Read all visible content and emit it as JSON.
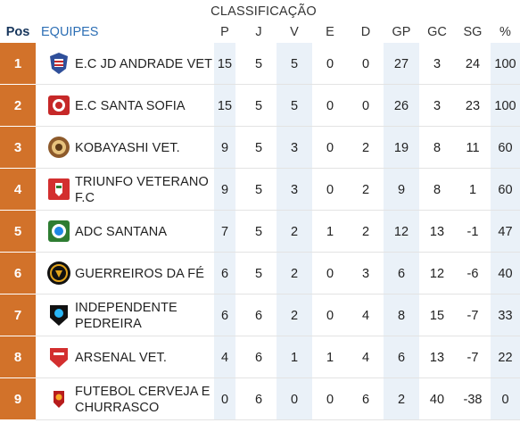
{
  "title": "CLASSIFICAÇÃO",
  "headers": {
    "pos": "Pos",
    "team": "EQUIPES",
    "p": "P",
    "j": "J",
    "v": "V",
    "e": "E",
    "d": "D",
    "gp": "GP",
    "gc": "GC",
    "sg": "SG",
    "pct": "%"
  },
  "colors": {
    "position_badge": "#d2722a",
    "header_team": "#2d6fb5",
    "header_pos": "#17365c",
    "shaded_column": "#eaf1f8"
  },
  "rows": [
    {
      "pos": "1",
      "team": "E.C JD ANDRADE VET",
      "logo": "shield-blue-red-crest",
      "p": "15",
      "j": "5",
      "v": "5",
      "e": "0",
      "d": "0",
      "gp": "27",
      "gc": "3",
      "sg": "24",
      "pct": "100"
    },
    {
      "pos": "2",
      "team": "E.C SANTA SOFIA",
      "logo": "red-white-crest",
      "p": "15",
      "j": "5",
      "v": "5",
      "e": "0",
      "d": "0",
      "gp": "26",
      "gc": "3",
      "sg": "23",
      "pct": "100"
    },
    {
      "pos": "3",
      "team": "KOBAYASHI VET.",
      "logo": "round-brown-crest",
      "p": "9",
      "j": "5",
      "v": "3",
      "e": "0",
      "d": "2",
      "gp": "19",
      "gc": "8",
      "sg": "11",
      "pct": "60"
    },
    {
      "pos": "4",
      "team": "TRIUNFO VETERANO F.C",
      "logo": "red-green-shield",
      "p": "9",
      "j": "5",
      "v": "3",
      "e": "0",
      "d": "2",
      "gp": "9",
      "gc": "8",
      "sg": "1",
      "pct": "60"
    },
    {
      "pos": "5",
      "team": "ADC SANTANA",
      "logo": "green-white-round-crest",
      "p": "7",
      "j": "5",
      "v": "2",
      "e": "1",
      "d": "2",
      "gp": "12",
      "gc": "13",
      "sg": "-1",
      "pct": "47"
    },
    {
      "pos": "6",
      "team": "GUERREIROS DA FÉ",
      "logo": "black-gold-round-crest",
      "p": "6",
      "j": "5",
      "v": "2",
      "e": "0",
      "d": "3",
      "gp": "6",
      "gc": "12",
      "sg": "-6",
      "pct": "40"
    },
    {
      "pos": "7",
      "team": "INDEPENDENTE PEDREIRA",
      "logo": "black-blue-shield",
      "p": "6",
      "j": "6",
      "v": "2",
      "e": "0",
      "d": "4",
      "gp": "8",
      "gc": "15",
      "sg": "-7",
      "pct": "33"
    },
    {
      "pos": "8",
      "team": "ARSENAL VET.",
      "logo": "red-shield",
      "p": "4",
      "j": "6",
      "v": "1",
      "e": "1",
      "d": "4",
      "gp": "6",
      "gc": "13",
      "sg": "-7",
      "pct": "22"
    },
    {
      "pos": "9",
      "team": "FUTEBOL CERVEJA E CHURRASCO",
      "logo": "red-gold-crest",
      "p": "0",
      "j": "6",
      "v": "0",
      "e": "0",
      "d": "6",
      "gp": "2",
      "gc": "40",
      "sg": "-38",
      "pct": "0"
    }
  ]
}
